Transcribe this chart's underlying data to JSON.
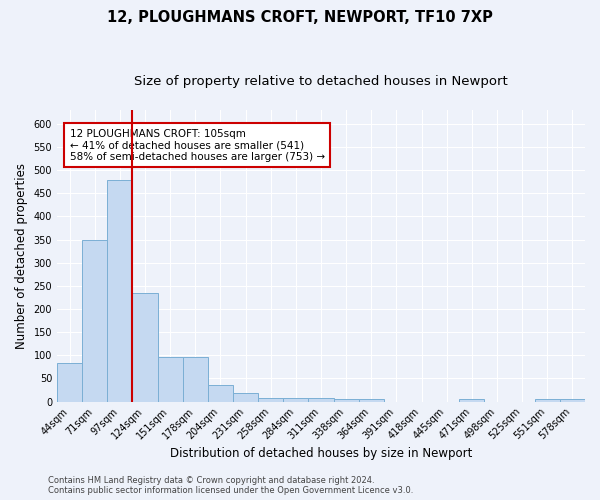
{
  "title_line1": "12, PLOUGHMANS CROFT, NEWPORT, TF10 7XP",
  "title_line2": "Size of property relative to detached houses in Newport",
  "xlabel": "Distribution of detached houses by size in Newport",
  "ylabel": "Number of detached properties",
  "categories": [
    "44sqm",
    "71sqm",
    "97sqm",
    "124sqm",
    "151sqm",
    "178sqm",
    "204sqm",
    "231sqm",
    "258sqm",
    "284sqm",
    "311sqm",
    "338sqm",
    "364sqm",
    "391sqm",
    "418sqm",
    "445sqm",
    "471sqm",
    "498sqm",
    "525sqm",
    "551sqm",
    "578sqm"
  ],
  "values": [
    83,
    349,
    478,
    235,
    97,
    97,
    36,
    18,
    8,
    8,
    8,
    5,
    5,
    0,
    0,
    0,
    5,
    0,
    0,
    5,
    5
  ],
  "bar_color": "#c5d9f1",
  "bar_edge_color": "#7bafd4",
  "vline_color": "#cc0000",
  "vline_x_index": 2,
  "annotation_text": "12 PLOUGHMANS CROFT: 105sqm\n← 41% of detached houses are smaller (541)\n58% of semi-detached houses are larger (753) →",
  "annotation_box_color": "#ffffff",
  "annotation_box_edge": "#cc0000",
  "ylim": [
    0,
    630
  ],
  "yticks": [
    0,
    50,
    100,
    150,
    200,
    250,
    300,
    350,
    400,
    450,
    500,
    550,
    600
  ],
  "footer_line1": "Contains HM Land Registry data © Crown copyright and database right 2024.",
  "footer_line2": "Contains public sector information licensed under the Open Government Licence v3.0.",
  "background_color": "#eef2fa",
  "grid_color": "#ffffff",
  "title_fontsize": 10.5,
  "subtitle_fontsize": 9.5,
  "tick_fontsize": 7,
  "ylabel_fontsize": 8.5,
  "xlabel_fontsize": 8.5,
  "footer_fontsize": 6,
  "annotation_fontsize": 7.5
}
